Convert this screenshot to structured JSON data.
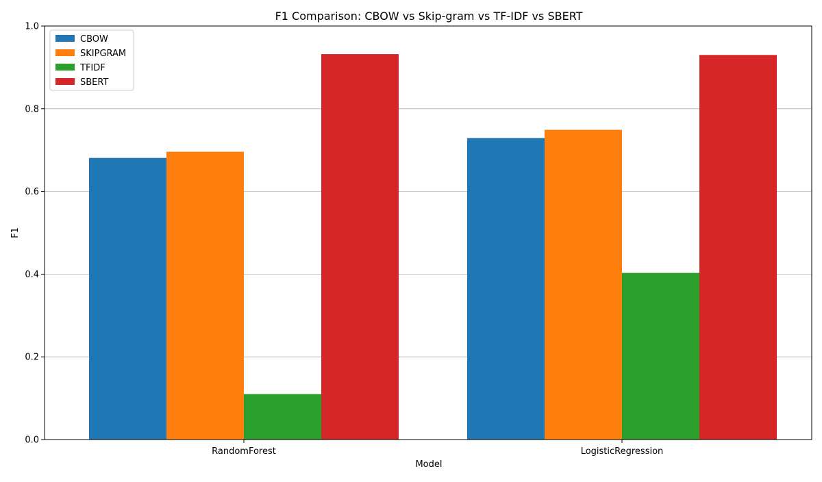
{
  "chart_data": {
    "type": "bar",
    "title": "F1 Comparison: CBOW vs Skip-gram vs TF-IDF vs SBERT",
    "xlabel": "Model",
    "ylabel": "F1",
    "categories": [
      "RandomForest",
      "LogisticRegression"
    ],
    "series": [
      {
        "name": "CBOW",
        "color": "#1f77b4",
        "values": [
          0.681,
          0.729
        ]
      },
      {
        "name": "SKIPGRAM",
        "color": "#ff7f0e",
        "values": [
          0.696,
          0.749
        ]
      },
      {
        "name": "TFIDF",
        "color": "#2ca02c",
        "values": [
          0.11,
          0.403
        ]
      },
      {
        "name": "SBERT",
        "color": "#d62728",
        "values": [
          0.932,
          0.93
        ]
      }
    ],
    "ylim": [
      0,
      1.0
    ],
    "yticks": [
      "0.0",
      "0.2",
      "0.4",
      "0.6",
      "0.8",
      "1.0"
    ],
    "grid": "y",
    "legend_position": "top-left"
  }
}
